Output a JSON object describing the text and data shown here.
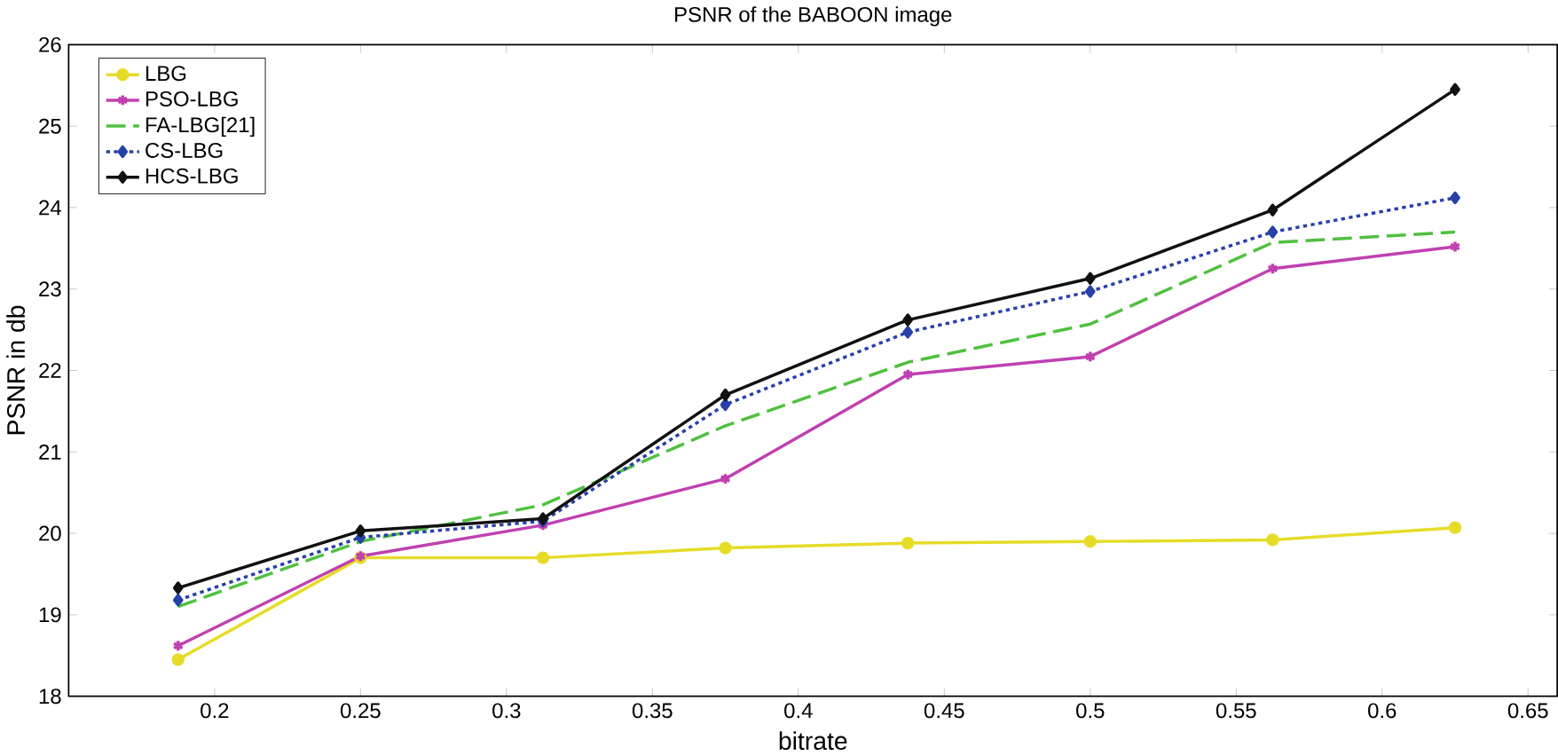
{
  "chart_data": {
    "type": "line",
    "title": "PSNR of the BABOON image",
    "xlabel": "bitrate",
    "ylabel": "PSNR in db",
    "x": [
      0.1875,
      0.25,
      0.3125,
      0.375,
      0.4375,
      0.5,
      0.5625,
      0.625
    ],
    "xlim": [
      0.15,
      0.66
    ],
    "xticks": [
      0.2,
      0.25,
      0.3,
      0.35,
      0.4,
      0.45,
      0.5,
      0.55,
      0.6,
      0.65
    ],
    "ylim": [
      18,
      26
    ],
    "yticks": [
      18,
      19,
      20,
      21,
      22,
      23,
      24,
      25,
      26
    ],
    "legend": "top left",
    "grid": false,
    "series": [
      {
        "name": "LBG",
        "color": "#e6dc28",
        "marker": "circle",
        "line_style": "solid",
        "values": [
          18.45,
          19.7,
          19.7,
          19.82,
          19.88,
          19.9,
          19.92,
          20.07
        ]
      },
      {
        "name": "PSO-LBG",
        "color": "#c040b0",
        "marker": "cross",
        "line_style": "solid",
        "values": [
          18.62,
          19.72,
          20.1,
          20.67,
          21.95,
          22.17,
          23.25,
          23.52
        ]
      },
      {
        "name": "FA-LBG[21]",
        "color": "#50c040",
        "marker": "none",
        "line_style": "dashed",
        "values": [
          19.1,
          19.9,
          20.35,
          21.32,
          22.1,
          22.57,
          23.57,
          23.7
        ]
      },
      {
        "name": "CS-LBG",
        "color": "#2840a8",
        "marker": "diamond",
        "line_style": "dotted",
        "values": [
          19.18,
          19.95,
          20.15,
          21.58,
          22.47,
          22.97,
          23.7,
          24.12
        ]
      },
      {
        "name": "HCS-LBG",
        "color": "#111111",
        "marker": "diamond",
        "line_style": "solid",
        "values": [
          19.33,
          20.03,
          20.18,
          21.7,
          22.62,
          23.13,
          23.97,
          25.45
        ]
      }
    ]
  }
}
